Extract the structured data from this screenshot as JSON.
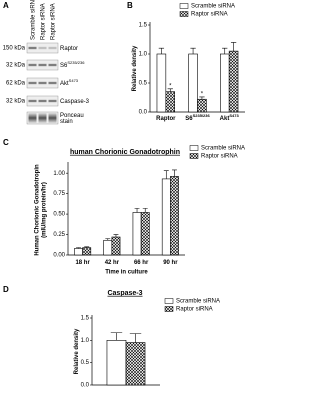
{
  "panel_a": {
    "label": "A",
    "lanes": [
      "Scramble siRNA",
      "Raptor siRNA",
      "Raptor siRNA"
    ],
    "rows": [
      {
        "size": "150 kDa",
        "protein": [
          "Raptor"
        ]
      },
      {
        "size": "32 kDa",
        "protein": [
          "S6"
        ],
        "superscript": "S235/236"
      },
      {
        "size": "62 kDa",
        "protein": [
          "Akt"
        ],
        "superscript": "S473"
      },
      {
        "size": "32 kDa",
        "protein": [
          "Caspase-3"
        ]
      },
      {
        "protein": [
          "Ponceau",
          "stain"
        ]
      }
    ]
  },
  "chart_data": [
    {
      "type": "bar",
      "panel": "B",
      "ylabel": [
        "Relative density"
      ],
      "categories": [
        "Raptor",
        "S6",
        "Akt"
      ],
      "category_superscripts": [
        null,
        "S235/236",
        "S473"
      ],
      "series": [
        {
          "name": "Scramble siRNA",
          "color": "#ffffff",
          "values": [
            1.0,
            1.0,
            1.0
          ],
          "errors": [
            0.1,
            0.1,
            0.1
          ]
        },
        {
          "name": "Raptor siRNA",
          "color": "#ffffff",
          "hatch": "crosshatch",
          "values": [
            0.35,
            0.22,
            1.05
          ],
          "errors": [
            0.05,
            0.04,
            0.15
          ],
          "value_annotations": [
            "*",
            "*",
            null
          ]
        }
      ],
      "ylim": [
        0,
        1.5
      ],
      "yticks": [
        {
          "value": 0,
          "label": "0.0"
        },
        0.5,
        {
          "value": 1,
          "label": "1.0"
        },
        1.5
      ],
      "legend": "upper right"
    },
    {
      "type": "bar",
      "panel": "C",
      "title": "human Chorionic Gonadotrophin",
      "ylabel": [
        "Human Chorionic Gonadotropin",
        "(mIU/mg protein/hr)"
      ],
      "xlabel": "Time in culture",
      "categories": [
        "18 hr",
        "42 hr",
        "66 hr",
        "90 hr"
      ],
      "series": [
        {
          "name": "Scramble siRNA",
          "color": "#ffffff",
          "values": [
            0.08,
            0.18,
            0.52,
            0.93
          ],
          "errors": [
            0.01,
            0.02,
            0.05,
            0.1
          ]
        },
        {
          "name": "Raptor siRNA",
          "color": "#ffffff",
          "hatch": "crosshatch",
          "values": [
            0.09,
            0.22,
            0.52,
            0.96
          ],
          "errors": [
            0.01,
            0.03,
            0.05,
            0.08
          ]
        }
      ],
      "ylim": [
        0,
        1.1
      ],
      "yticks": [
        {
          "value": 0,
          "label": "0.00"
        },
        0.25,
        {
          "value": 0.5,
          "label": "0.50"
        },
        0.75,
        {
          "value": 1,
          "label": "1.00"
        }
      ],
      "legend": "upper right"
    },
    {
      "type": "bar",
      "panel": "D",
      "title": "Caspase-3",
      "ylabel": [
        "Relative density"
      ],
      "categories": [
        null
      ],
      "series": [
        {
          "name": "Scramble siRNA",
          "color": "#ffffff",
          "values": [
            1.0
          ],
          "errors": [
            0.17
          ]
        },
        {
          "name": "Raptor siRNA",
          "color": "#ffffff",
          "hatch": "crosshatch",
          "values": [
            0.95
          ],
          "errors": [
            0.2
          ]
        }
      ],
      "ylim": [
        0,
        1.5
      ],
      "yticks": [
        {
          "value": 0,
          "label": "0.0"
        },
        0.5,
        {
          "value": 1,
          "label": "1.0"
        },
        1.5
      ],
      "legend": "upper right"
    }
  ]
}
